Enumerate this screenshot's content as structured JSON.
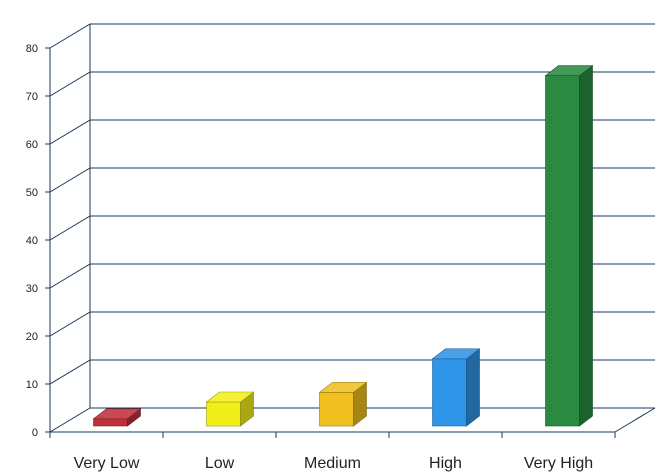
{
  "chart_data": {
    "type": "bar",
    "style": "3d-column",
    "categories": [
      "Very Low",
      "Low",
      "Medium",
      "High",
      "Very High"
    ],
    "values": [
      1.5,
      5,
      7,
      14,
      73
    ],
    "colors": [
      "#c0303a",
      "#f2ee1a",
      "#f0c020",
      "#2f95e8",
      "#2a8a42"
    ],
    "ylim": [
      0,
      80
    ],
    "yticks": [
      "0",
      "10",
      "20",
      "30",
      "40",
      "50",
      "60",
      "70",
      "80"
    ],
    "title": "",
    "xlabel": "",
    "ylabel": "",
    "grid": true,
    "legend": "none"
  }
}
